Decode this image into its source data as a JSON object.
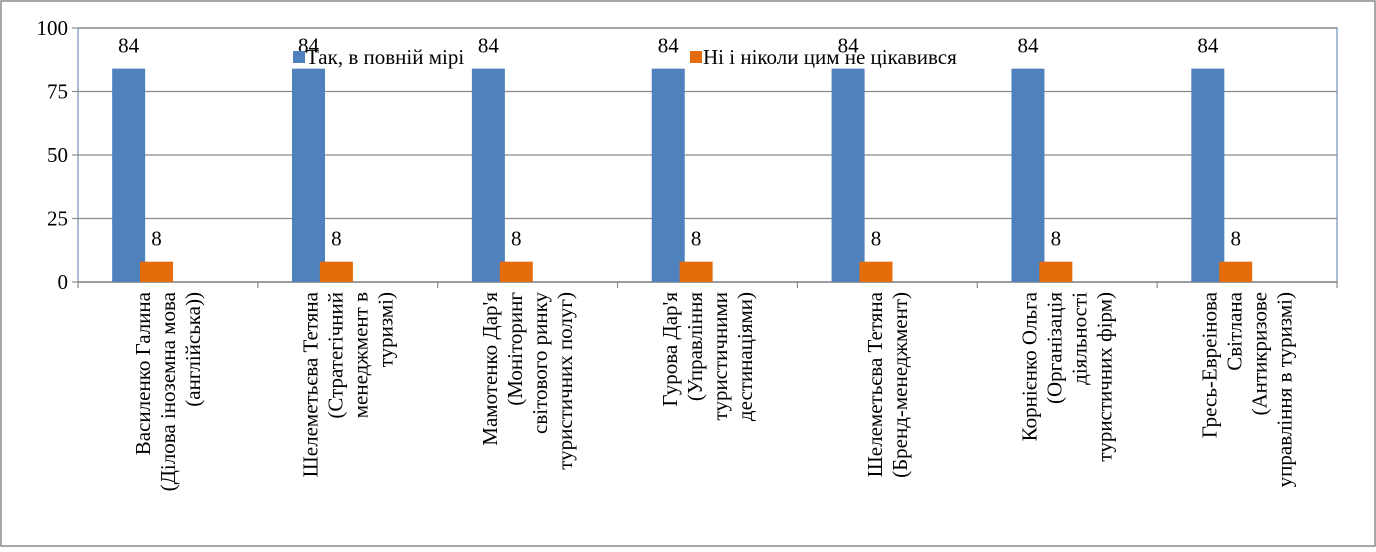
{
  "chart_data": {
    "type": "bar",
    "categories": [
      [
        "Василенко Галина",
        "(Ділова іноземна мова",
        "(англійська))"
      ],
      [
        "Шелеметьєва Тетяна",
        "(Стратегічний",
        "менеджмент в",
        "туризмі)"
      ],
      [
        "Мамотенко Дар'я",
        "(Моніторинг",
        "світового ринку",
        "туристичних полуг)"
      ],
      [
        "Гурова Дар'я",
        "(Управління",
        "туристичними",
        "дестинаціями)"
      ],
      [
        "Шелеметьєва Тетяна",
        "(Бренд-менеджмент)"
      ],
      [
        "Корнієнко Ольга",
        "(Організація",
        "діяльності",
        "туристичних фірм)"
      ],
      [
        "Гресь-Евреінова",
        "Світлана",
        "(Антикризове",
        "управління в туризмі)"
      ]
    ],
    "series": [
      {
        "name": "Так, в повній мірі",
        "color": "#4F81BD",
        "values": [
          84,
          84,
          84,
          84,
          84,
          84,
          84
        ]
      },
      {
        "name": "Ні і ніколи цим не цікавився",
        "color": "#E46C0A",
        "values": [
          8,
          8,
          8,
          8,
          8,
          8,
          8
        ]
      }
    ],
    "y_ticks": [
      0,
      25,
      50,
      75,
      100
    ],
    "ylim": [
      0,
      100
    ],
    "grid": true,
    "legend_position": "top-center",
    "data_labels": true
  }
}
